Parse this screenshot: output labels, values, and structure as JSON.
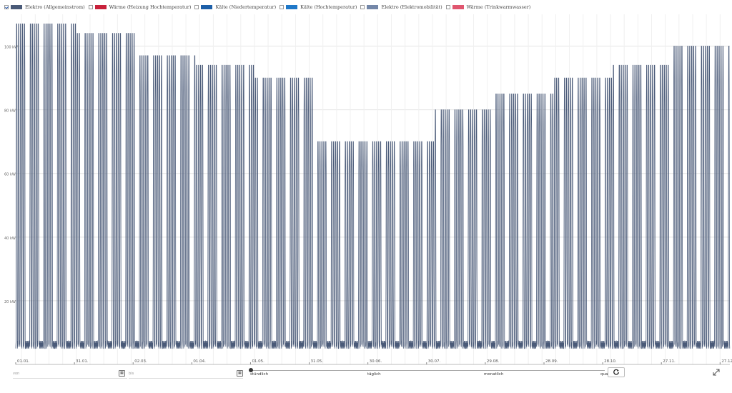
{
  "legend": [
    {
      "label": "Elektro (Allgemeinstrom)",
      "color": "#4a5a78",
      "checked": true
    },
    {
      "label": "Wärme (Heizung Hochtemperatur)",
      "color": "#c8213b",
      "checked": false
    },
    {
      "label": "Kälte (Niedertemperatur)",
      "color": "#1d5fa8",
      "checked": false
    },
    {
      "label": "Kälte (Hochtemperatur)",
      "color": "#1f78c8",
      "checked": false
    },
    {
      "label": "Elektro (Elektromobilität)",
      "color": "#7487a8",
      "checked": false
    },
    {
      "label": "Wärme (Trinkwarmwasser)",
      "color": "#e0566f",
      "checked": false
    }
  ],
  "chart_data": {
    "type": "line",
    "yunit": "kW",
    "ylim": [
      0,
      110
    ],
    "yticks": [
      20,
      40,
      60,
      80,
      100
    ],
    "ytick_labels": [
      "20 kW",
      "40 kW",
      "60 kW",
      "80 kW",
      "100 kW"
    ],
    "xtick_labels": [
      "01.01.",
      "31.01.",
      "02.03.",
      "01.04.",
      "01.05.",
      "31.05.",
      "30.06.",
      "30.07.",
      "29.08.",
      "28.09.",
      "28.10.",
      "27.11.",
      "27.12."
    ],
    "xtick_days": [
      0,
      30,
      60,
      90,
      120,
      150,
      180,
      210,
      240,
      270,
      300,
      330,
      360
    ],
    "days": 365,
    "series": [
      {
        "name": "Elektro (Allgemeinstrom)",
        "color": "#4a5a78",
        "baseline_kw": 5,
        "weekday_peak_kw_by_month": [
          107,
          104,
          97,
          94,
          90,
          70,
          70,
          80,
          85,
          90,
          94,
          100
        ]
      }
    ],
    "grid": true
  },
  "controls": {
    "from_label": "von",
    "to_label": "bis",
    "calendar_icon": "calendar-icon",
    "resolution_options": [
      "stündlich",
      "täglich",
      "monatlich",
      "quar"
    ],
    "resolution_selected": "stündlich",
    "reset_icon": "reset-icon",
    "expand_icon": "expand-icon"
  }
}
